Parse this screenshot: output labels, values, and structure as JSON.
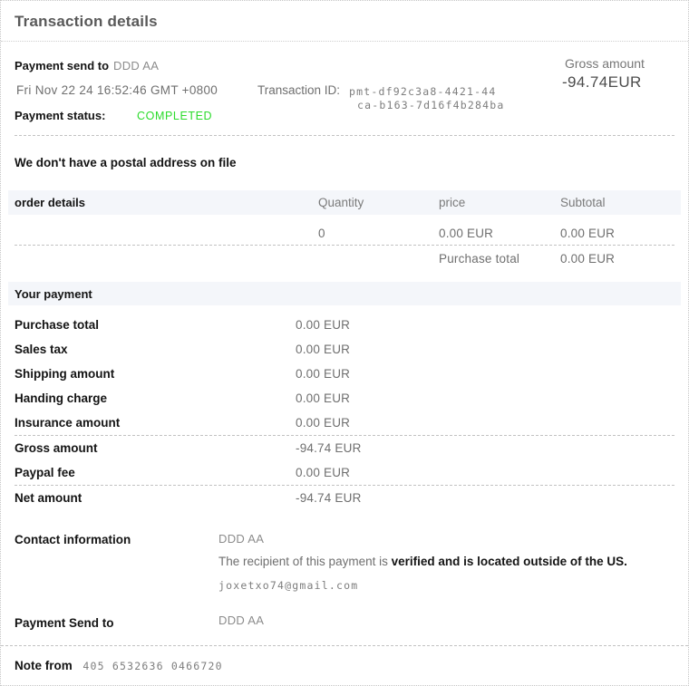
{
  "page": {
    "title": "Transaction details"
  },
  "summary": {
    "payment_send_to_label": "Payment send to",
    "payment_send_to_value": "DDD AA",
    "date": "Fri Nov 22 24 16:52:46 GMT +0800",
    "transaction_id_label": "Transaction ID:",
    "transaction_id_line1": "pmt-df92c3a8-4421-44",
    "transaction_id_line2": "ca-b163-7d16f4b284ba",
    "payment_status_label": "Payment status:",
    "payment_status_value": "COMPLETED",
    "gross_amount_label": "Gross amount",
    "gross_amount_value": "-94.74EUR"
  },
  "postal_notice": "We don't have a postal address on file",
  "order_table": {
    "headers": {
      "details": "order details",
      "quantity": "Quantity",
      "price": "price",
      "subtotal": "Subtotal"
    },
    "row": {
      "quantity": "0",
      "price": "0.00 EUR",
      "subtotal": "0.00 EUR"
    },
    "purchase_total_label": "Purchase total",
    "purchase_total_value": "0.00 EUR"
  },
  "your_payment": {
    "heading": "Your payment",
    "rows": [
      {
        "label": "Purchase total",
        "value": "0.00 EUR"
      },
      {
        "label": "Sales tax",
        "value": "0.00 EUR"
      },
      {
        "label": "Shipping amount",
        "value": "0.00 EUR"
      },
      {
        "label": "Handing charge",
        "value": "0.00 EUR"
      },
      {
        "label": "Insurance amount",
        "value": "0.00 EUR"
      },
      {
        "label": "Gross amount",
        "value": "-94.74 EUR"
      },
      {
        "label": "Paypal fee",
        "value": "0.00 EUR"
      },
      {
        "label": "Net amount",
        "value": "-94.74 EUR"
      }
    ]
  },
  "contact": {
    "label": "Contact information",
    "name": "DDD AA",
    "recipient_text_normal": "The recipient of this payment is ",
    "recipient_text_bold": "verified and is located outside of the US.",
    "email": "joxetxo74@gmail.com"
  },
  "payment_send_to_section": {
    "label": "Payment Send to",
    "value": "DDD AA"
  },
  "note": {
    "label": "Note from",
    "value": "405 6532636 0466720"
  },
  "colors": {
    "status_completed_green": "#2bdb2b",
    "section_bar_background": "#f4f6fa",
    "title_gray": "#595959"
  }
}
